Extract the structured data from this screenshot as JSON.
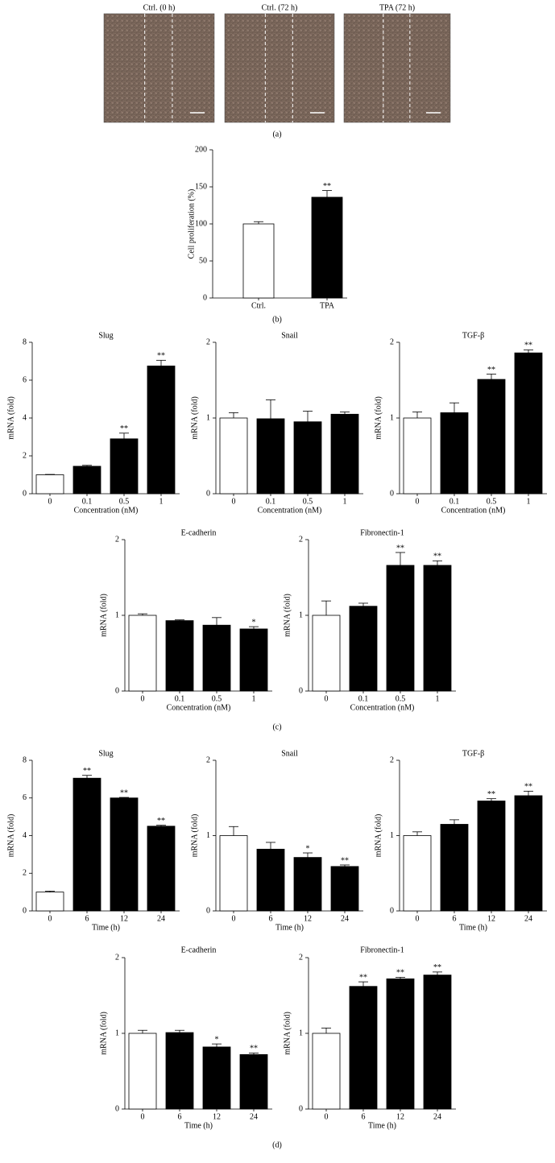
{
  "panel_a": {
    "images": [
      "Ctrl. (0 h)",
      "Ctrl. (72 h)",
      "TPA (72 h)"
    ]
  },
  "panel_labels": [
    "(a)",
    "(b)",
    "(c)",
    "(d)"
  ],
  "chart_data": [
    {
      "type": "bar",
      "ylabel": "Cell proliferation (%)",
      "categories": [
        "Ctrl.",
        "TPA"
      ],
      "values": [
        100,
        136
      ],
      "errors": [
        3,
        9
      ],
      "annotations": [
        null,
        "**"
      ],
      "colors": [
        "#ffffff",
        "#000000"
      ],
      "ylim": [
        0,
        200
      ],
      "yticks": [
        0,
        50,
        100,
        150,
        200
      ]
    },
    {
      "type": "bar",
      "title": "Slug",
      "ylabel": "mRNA (fold)",
      "xlabel": "Concentration (nM)",
      "categories": [
        "0",
        "0.1",
        "0.5",
        "1"
      ],
      "values": [
        1.0,
        1.45,
        2.9,
        6.75
      ],
      "errors": [
        0.02,
        0.05,
        0.3,
        0.3
      ],
      "annotations": [
        null,
        null,
        "**",
        "**"
      ],
      "colors": [
        "#ffffff",
        "#000000",
        "#000000",
        "#000000"
      ],
      "ylim": [
        0,
        8
      ],
      "yticks": [
        0,
        2,
        4,
        6,
        8
      ]
    },
    {
      "type": "bar",
      "title": "Snail",
      "ylabel": "mRNA (fold)",
      "xlabel": "Concentration (nM)",
      "categories": [
        "0",
        "0.1",
        "0.5",
        "1"
      ],
      "values": [
        1.0,
        0.99,
        0.95,
        1.05
      ],
      "errors": [
        0.07,
        0.25,
        0.14,
        0.03
      ],
      "annotations": [
        null,
        null,
        null,
        null
      ],
      "colors": [
        "#ffffff",
        "#000000",
        "#000000",
        "#000000"
      ],
      "ylim": [
        0,
        2
      ],
      "yticks": [
        0,
        1,
        2
      ]
    },
    {
      "type": "bar",
      "title": "TGF-β",
      "ylabel": "mRNA (fold)",
      "xlabel": "Concentration (nM)",
      "categories": [
        "0",
        "0.1",
        "0.5",
        "1"
      ],
      "values": [
        1.0,
        1.07,
        1.51,
        1.86
      ],
      "errors": [
        0.08,
        0.13,
        0.07,
        0.04
      ],
      "annotations": [
        null,
        null,
        "**",
        "**"
      ],
      "colors": [
        "#ffffff",
        "#000000",
        "#000000",
        "#000000"
      ],
      "ylim": [
        0,
        2
      ],
      "yticks": [
        0,
        1,
        2
      ]
    },
    {
      "type": "bar",
      "title": "E-cadherin",
      "ylabel": "mRNA (fold)",
      "xlabel": "Concentration (nM)",
      "categories": [
        "0",
        "0.1",
        "0.5",
        "1"
      ],
      "values": [
        1.0,
        0.93,
        0.87,
        0.82
      ],
      "errors": [
        0.02,
        0.01,
        0.1,
        0.03
      ],
      "annotations": [
        null,
        null,
        null,
        "*"
      ],
      "colors": [
        "#ffffff",
        "#000000",
        "#000000",
        "#000000"
      ],
      "ylim": [
        0,
        2
      ],
      "yticks": [
        0,
        1,
        2
      ]
    },
    {
      "type": "bar",
      "title": "Fibronectin-1",
      "ylabel": "mRNA (fold)",
      "xlabel": "Concentration (nM)",
      "categories": [
        "0",
        "0.1",
        "0.5",
        "1"
      ],
      "values": [
        1.0,
        1.12,
        1.66,
        1.66
      ],
      "errors": [
        0.19,
        0.04,
        0.17,
        0.06
      ],
      "annotations": [
        null,
        null,
        "**",
        "**"
      ],
      "colors": [
        "#ffffff",
        "#000000",
        "#000000",
        "#000000"
      ],
      "ylim": [
        0,
        2
      ],
      "yticks": [
        0,
        1,
        2
      ]
    },
    {
      "type": "bar",
      "title": "Slug",
      "ylabel": "mRNA (fold)",
      "xlabel": "Time (h)",
      "categories": [
        "0",
        "6",
        "12",
        "24"
      ],
      "values": [
        1.0,
        7.05,
        6.0,
        4.5
      ],
      "errors": [
        0.05,
        0.15,
        0.03,
        0.05
      ],
      "annotations": [
        null,
        "**",
        "**",
        "**"
      ],
      "colors": [
        "#ffffff",
        "#000000",
        "#000000",
        "#000000"
      ],
      "ylim": [
        0,
        8
      ],
      "yticks": [
        0,
        2,
        4,
        6,
        8
      ]
    },
    {
      "type": "bar",
      "title": "Snail",
      "ylabel": "mRNA (fold)",
      "xlabel": "Time (h)",
      "categories": [
        "0",
        "6",
        "12",
        "24"
      ],
      "values": [
        1.0,
        0.82,
        0.71,
        0.59
      ],
      "errors": [
        0.12,
        0.09,
        0.06,
        0.02
      ],
      "annotations": [
        null,
        null,
        "*",
        "**"
      ],
      "colors": [
        "#ffffff",
        "#000000",
        "#000000",
        "#000000"
      ],
      "ylim": [
        0,
        2
      ],
      "yticks": [
        0,
        1,
        2
      ]
    },
    {
      "type": "bar",
      "title": "TGF-β",
      "ylabel": "mRNA (fold)",
      "xlabel": "Time (h)",
      "categories": [
        "0",
        "6",
        "12",
        "24"
      ],
      "values": [
        1.0,
        1.15,
        1.46,
        1.53
      ],
      "errors": [
        0.05,
        0.06,
        0.03,
        0.06
      ],
      "annotations": [
        null,
        null,
        "**",
        "**"
      ],
      "colors": [
        "#ffffff",
        "#000000",
        "#000000",
        "#000000"
      ],
      "ylim": [
        0,
        2
      ],
      "yticks": [
        0,
        1,
        2
      ]
    },
    {
      "type": "bar",
      "title": "E-cadherin",
      "ylabel": "mRNA (fold)",
      "xlabel": "Time (h)",
      "categories": [
        "0",
        "6",
        "12",
        "24"
      ],
      "values": [
        1.0,
        1.01,
        0.82,
        0.72
      ],
      "errors": [
        0.04,
        0.03,
        0.04,
        0.02
      ],
      "annotations": [
        null,
        null,
        "*",
        "**"
      ],
      "colors": [
        "#ffffff",
        "#000000",
        "#000000",
        "#000000"
      ],
      "ylim": [
        0,
        2
      ],
      "yticks": [
        0,
        1,
        2
      ]
    },
    {
      "type": "bar",
      "title": "Fibronectin-1",
      "ylabel": "mRNA (fold)",
      "xlabel": "Time (h)",
      "categories": [
        "0",
        "6",
        "12",
        "24"
      ],
      "values": [
        1.0,
        1.62,
        1.72,
        1.77
      ],
      "errors": [
        0.07,
        0.06,
        0.02,
        0.04
      ],
      "annotations": [
        null,
        "**",
        "**",
        "**"
      ],
      "colors": [
        "#ffffff",
        "#000000",
        "#000000",
        "#000000"
      ],
      "ylim": [
        0,
        2
      ],
      "yticks": [
        0,
        1,
        2
      ]
    }
  ]
}
